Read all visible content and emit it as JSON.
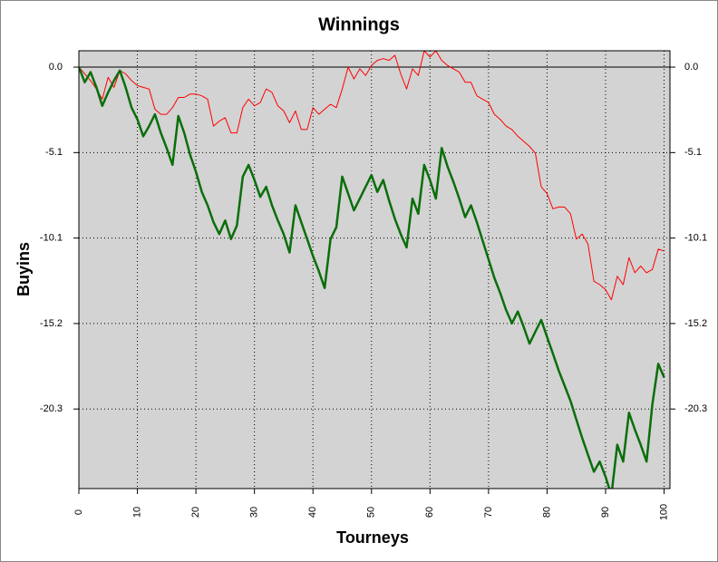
{
  "chart_data": {
    "type": "line",
    "title": "Winnings",
    "x_label": "Tourneys",
    "y_label": "Buyins",
    "x": [
      0,
      1,
      2,
      3,
      4,
      5,
      6,
      7,
      8,
      9,
      10,
      11,
      12,
      13,
      14,
      15,
      16,
      17,
      18,
      19,
      20,
      21,
      22,
      23,
      24,
      25,
      26,
      27,
      28,
      29,
      30,
      31,
      32,
      33,
      34,
      35,
      36,
      37,
      38,
      39,
      40,
      41,
      42,
      43,
      44,
      45,
      46,
      47,
      48,
      49,
      50,
      51,
      52,
      53,
      54,
      55,
      56,
      57,
      58,
      59,
      60,
      61,
      62,
      63,
      64,
      65,
      66,
      67,
      68,
      69,
      70,
      71,
      72,
      73,
      74,
      75,
      76,
      77,
      78,
      79,
      80,
      81,
      82,
      83,
      84,
      85,
      86,
      87,
      88,
      89,
      90,
      91,
      92,
      93,
      94,
      95,
      96,
      97,
      98,
      99,
      100
    ],
    "series": [
      {
        "color": "#ff0000",
        "line_width": 1,
        "values": [
          0,
          -0.4,
          -0.8,
          -1.3,
          -1.9,
          -0.6,
          -1.2,
          -0.2,
          -0.4,
          -0.8,
          -1.1,
          -1.2,
          -1.3,
          -2.5,
          -2.8,
          -2.8,
          -2.4,
          -1.8,
          -1.8,
          -1.6,
          -1.6,
          -1.7,
          -1.9,
          -3.5,
          -3.2,
          -3.0,
          -3.9,
          -3.9,
          -2.4,
          -1.9,
          -2.3,
          -2.1,
          -1.3,
          -1.5,
          -2.3,
          -2.6,
          -3.3,
          -2.6,
          -3.7,
          -3.7,
          -2.4,
          -2.8,
          -2.5,
          -2.2,
          -2.4,
          -1.3,
          0,
          -0.7,
          -0.1,
          -0.5,
          0.1,
          0.4,
          0.5,
          0.4,
          0.7,
          -0.4,
          -1.3,
          -0.1,
          -0.5,
          0.97,
          0.6,
          0.97,
          0.4,
          0.1,
          -0.1,
          -0.3,
          -0.9,
          -0.9,
          -1.7,
          -1.9,
          -2.1,
          -2.8,
          -3.1,
          -3.5,
          -3.7,
          -4.1,
          -4.4,
          -4.7,
          -5.1,
          -7.1,
          -7.5,
          -8.4,
          -8.3,
          -8.3,
          -8.7,
          -10.2,
          -9.9,
          -10.5,
          -12.7,
          -12.9,
          -13.2,
          -13.8,
          -12.4,
          -12.9,
          -11.3,
          -12.2,
          -11.8,
          -12.2,
          -12.0,
          -10.8,
          -10.9
        ]
      },
      {
        "color": "#0a6e0a",
        "line_width": 2.5,
        "values": [
          0,
          -0.9,
          -0.3,
          -1.2,
          -2.3,
          -1.5,
          -0.8,
          -0.2,
          -1.2,
          -2.4,
          -3.1,
          -4.1,
          -3.5,
          -2.8,
          -3.9,
          -4.8,
          -5.8,
          -2.9,
          -3.9,
          -5.2,
          -6.2,
          -7.4,
          -8.2,
          -9.2,
          -9.9,
          -9.1,
          -10.2,
          -9.4,
          -6.5,
          -5.8,
          -6.7,
          -7.7,
          -7.1,
          -8.2,
          -9.1,
          -9.9,
          -11.0,
          -8.2,
          -9.2,
          -10.2,
          -11.2,
          -12.1,
          -13.1,
          -10.2,
          -9.5,
          -6.5,
          -7.5,
          -8.5,
          -7.8,
          -7.1,
          -6.4,
          -7.4,
          -6.7,
          -7.9,
          -9.0,
          -9.9,
          -10.7,
          -7.8,
          -8.7,
          -5.8,
          -6.7,
          -7.8,
          -4.8,
          -5.9,
          -6.8,
          -7.8,
          -8.9,
          -8.2,
          -9.2,
          -10.3,
          -11.4,
          -12.5,
          -13.4,
          -14.4,
          -15.2,
          -14.5,
          -15.4,
          -16.4,
          -15.7,
          -15.0,
          -16.0,
          -17.0,
          -18.0,
          -18.9,
          -19.8,
          -20.9,
          -22.0,
          -23.0,
          -24.0,
          -23.4,
          -24.3,
          -25.4,
          -22.4,
          -23.4,
          -20.5,
          -21.5,
          -22.4,
          -23.4,
          -20.0,
          -17.6,
          -18.4
        ]
      }
    ],
    "xlim": [
      0,
      101
    ],
    "xticks": [
      0,
      10,
      20,
      30,
      40,
      50,
      60,
      70,
      80,
      90,
      100
    ],
    "ylim": [
      -25.0,
      0.97
    ],
    "yticks": [
      {
        "value": 0,
        "label": "0.0"
      },
      {
        "value": -5.07,
        "label": "-5.1"
      },
      {
        "value": -10.14,
        "label": "-10.1"
      },
      {
        "value": -15.21,
        "label": "-15.2"
      },
      {
        "value": -20.28,
        "label": "-20.3"
      }
    ],
    "grid": true,
    "background": "#d3d3d3"
  }
}
